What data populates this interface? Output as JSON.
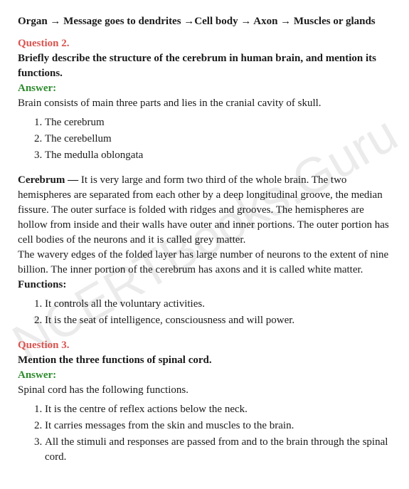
{
  "watermark": "NCERTBooks.Guru",
  "intro_path": "Organ → Message goes to dendrites →Cell body → Axon → Muscles or  glands",
  "q2": {
    "label": "Question 2.",
    "prompt": "Briefly describe the structure of the cerebrum in human brain, and mention its functions.",
    "answer_label": "Answer:",
    "intro": "Brain consists of main three parts and lies in the cranial cavity of skull.",
    "parts": [
      "The cerebrum",
      "The cerebellum",
      "The medulla oblongata"
    ],
    "cerebrum_label": "Cerebrum —",
    "cerebrum_text": " It is very large and form two third of the whole brain. The two hemispheres are separated from each other by a deep longitudinal groove, the median fissure. The outer surface is folded with ridges and grooves. The hemispheres are hollow from inside and their walls have outer and inner portions. The outer portion has cell bodies of the neurons and it is called grey matter.",
    "cerebrum_text2": "The wavery edges of the folded layer has large number of neurons to the extent of nine billion. The inner portion of the cerebrum has axons and it is called white matter.",
    "functions_label": "Functions:",
    "functions": [
      "It controls all the voluntary activities.",
      "It is the seat of intelligence, consciousness and will power."
    ]
  },
  "q3": {
    "label": "Question 3.",
    "prompt": "Mention the three functions of spinal cord.",
    "answer_label": "Answer:",
    "intro": "Spinal cord has the following functions.",
    "functions": [
      "It is the centre of reflex actions below the neck.",
      "It carries messages from the skin and muscles to the brain.",
      "All the stimuli and responses are passed from and to the brain through the spinal cord."
    ]
  }
}
